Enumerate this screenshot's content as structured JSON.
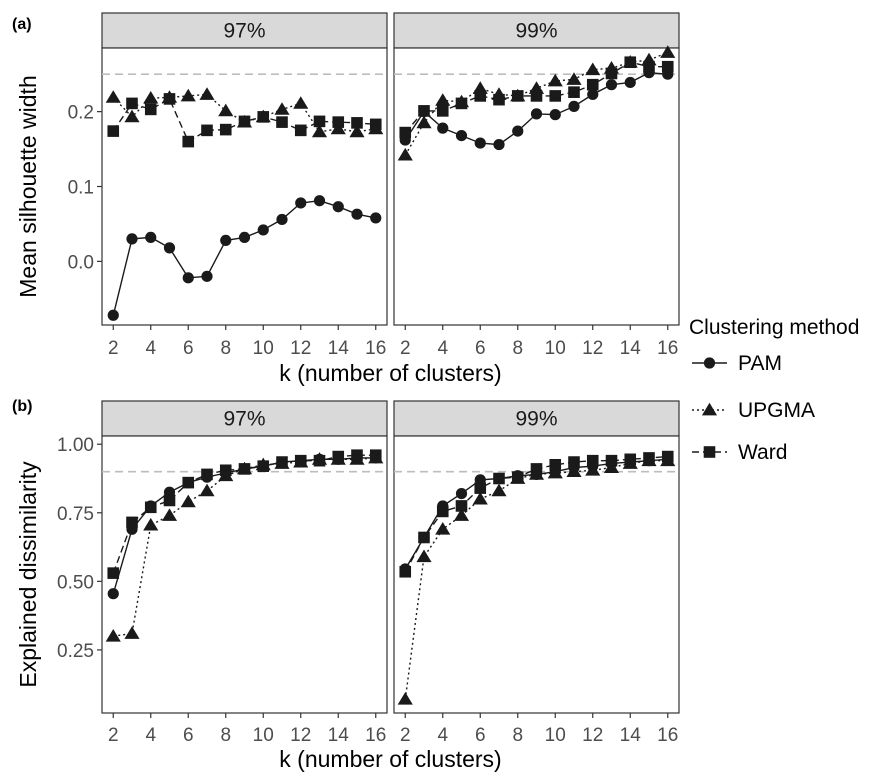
{
  "figure": {
    "panel_a_tag": "(a)",
    "panel_b_tag": "(b)",
    "legend_title": "Clustering method"
  },
  "chart_data": [
    {
      "type": "line",
      "panel": "(a)",
      "facets": [
        "97%",
        "99%"
      ],
      "xlabel": "k (number of clusters)",
      "ylabel": "Mean silhouette width",
      "x": [
        2,
        3,
        4,
        5,
        6,
        7,
        8,
        9,
        10,
        11,
        12,
        13,
        14,
        15,
        16
      ],
      "xticks": [
        2,
        4,
        6,
        8,
        10,
        12,
        14,
        16
      ],
      "ylim": [
        -0.085,
        0.285
      ],
      "yticks": [
        0.0,
        0.1,
        0.2
      ],
      "ytick_labels": [
        "0.0",
        "0.1",
        "0.2"
      ],
      "reference_line": 0.25,
      "grid": false,
      "legend_position": "right",
      "series": [
        {
          "name": "PAM",
          "marker": "circle",
          "line": "solid",
          "values_by_facet": [
            [
              -0.072,
              0.03,
              0.032,
              0.018,
              -0.022,
              -0.02,
              0.028,
              0.032,
              0.042,
              0.056,
              0.078,
              0.081,
              0.073,
              0.063,
              0.058
            ],
            [
              0.162,
              0.2,
              0.178,
              0.168,
              0.158,
              0.156,
              0.174,
              0.197,
              0.196,
              0.207,
              0.223,
              0.236,
              0.239,
              0.252,
              0.25
            ]
          ]
        },
        {
          "name": "UPGMA",
          "marker": "triangle",
          "line": "dotted",
          "values_by_facet": [
            [
              0.219,
              0.193,
              0.218,
              0.219,
              0.221,
              0.223,
              0.201,
              0.186,
              0.193,
              0.203,
              0.211,
              0.173,
              0.177,
              0.173,
              0.177
            ],
            [
              0.142,
              0.185,
              0.215,
              0.213,
              0.231,
              0.223,
              0.221,
              0.231,
              0.241,
              0.243,
              0.256,
              0.258,
              0.266,
              0.269,
              0.279
            ]
          ]
        },
        {
          "name": "Ward",
          "marker": "square",
          "line": "dashed",
          "values_by_facet": [
            [
              0.174,
              0.211,
              0.203,
              0.217,
              0.16,
              0.175,
              0.176,
              0.187,
              0.193,
              0.186,
              0.175,
              0.187,
              0.186,
              0.185,
              0.183
            ],
            [
              0.172,
              0.201,
              0.201,
              0.211,
              0.221,
              0.216,
              0.221,
              0.221,
              0.221,
              0.226,
              0.236,
              0.251,
              0.266,
              0.26,
              0.26
            ]
          ]
        }
      ]
    },
    {
      "type": "line",
      "panel": "(b)",
      "facets": [
        "97%",
        "99%"
      ],
      "xlabel": "k (number of clusters)",
      "ylabel": "Explained dissimilarity",
      "x": [
        2,
        3,
        4,
        5,
        6,
        7,
        8,
        9,
        10,
        11,
        12,
        13,
        14,
        15,
        16
      ],
      "xticks": [
        2,
        4,
        6,
        8,
        10,
        12,
        14,
        16
      ],
      "ylim": [
        0.02,
        1.03
      ],
      "yticks": [
        0.25,
        0.5,
        0.75,
        1.0
      ],
      "ytick_labels": [
        "0.25",
        "0.50",
        "0.75",
        "1.00"
      ],
      "reference_line": 0.9,
      "grid": false,
      "legend_position": "right",
      "series": [
        {
          "name": "PAM",
          "marker": "circle",
          "line": "solid",
          "values_by_facet": [
            [
              0.455,
              0.69,
              0.775,
              0.825,
              0.86,
              0.88,
              0.895,
              0.91,
              0.92,
              0.935,
              0.94,
              0.945,
              0.945,
              0.95,
              0.95
            ],
            [
              0.545,
              0.66,
              0.775,
              0.82,
              0.87,
              0.875,
              0.885,
              0.89,
              0.9,
              0.915,
              0.92,
              0.93,
              0.935,
              0.94,
              0.945
            ]
          ]
        },
        {
          "name": "UPGMA",
          "marker": "triangle",
          "line": "dotted",
          "values_by_facet": [
            [
              0.3,
              0.31,
              0.705,
              0.74,
              0.79,
              0.83,
              0.885,
              0.91,
              0.925,
              0.93,
              0.935,
              0.945,
              0.945,
              0.945,
              0.95
            ],
            [
              0.07,
              0.59,
              0.69,
              0.74,
              0.8,
              0.83,
              0.875,
              0.89,
              0.895,
              0.9,
              0.905,
              0.915,
              0.93,
              0.94,
              0.94
            ]
          ]
        },
        {
          "name": "Ward",
          "marker": "square",
          "line": "dashed",
          "values_by_facet": [
            [
              0.53,
              0.715,
              0.77,
              0.795,
              0.86,
              0.89,
              0.905,
              0.91,
              0.92,
              0.935,
              0.94,
              0.94,
              0.955,
              0.96,
              0.96
            ],
            [
              0.535,
              0.66,
              0.755,
              0.775,
              0.84,
              0.875,
              0.88,
              0.91,
              0.925,
              0.935,
              0.94,
              0.94,
              0.945,
              0.95,
              0.955
            ]
          ]
        }
      ]
    }
  ]
}
